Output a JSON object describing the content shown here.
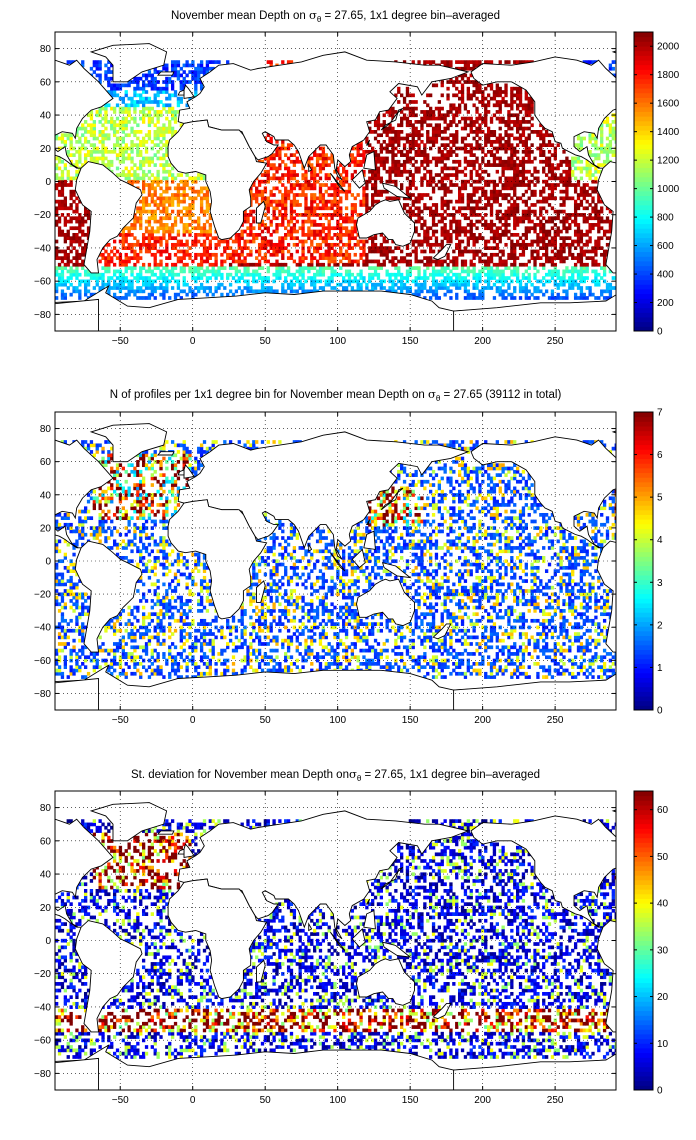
{
  "chart_data": [
    {
      "type": "heatmap",
      "title": {
        "before": "November mean Depth on ",
        "sym": "σ",
        "sub": "θ",
        "after": " = 27.65, 1x1 degree bin–averaged"
      },
      "xlim": [
        -95,
        292
      ],
      "ylim": [
        -90,
        90
      ],
      "xticks": [
        -50,
        0,
        50,
        100,
        150,
        200,
        250
      ],
      "yticks": [
        -80,
        -60,
        -40,
        -20,
        0,
        20,
        40,
        60,
        80
      ],
      "grid": true,
      "colorbar": {
        "min": 0,
        "max": 2100,
        "ticks": [
          0,
          200,
          400,
          600,
          800,
          1000,
          1200,
          1400,
          1600,
          1800,
          2000
        ]
      },
      "colormap": "jet",
      "field": "depth"
    },
    {
      "type": "heatmap",
      "title": {
        "before": "N of profiles per 1x1 degree bin for November mean Depth on ",
        "sym": "σ",
        "sub": "θ",
        "after": " = 27.65 (39112 in total)"
      },
      "xlim": [
        -95,
        292
      ],
      "ylim": [
        -90,
        90
      ],
      "xticks": [
        -50,
        0,
        50,
        100,
        150,
        200,
        250
      ],
      "yticks": [
        -80,
        -60,
        -40,
        -20,
        0,
        20,
        40,
        60,
        80
      ],
      "grid": true,
      "colorbar": {
        "min": 0,
        "max": 7,
        "ticks": [
          0,
          1,
          2,
          3,
          4,
          5,
          6,
          7
        ]
      },
      "colormap": "jet",
      "field": "count"
    },
    {
      "type": "heatmap",
      "title": {
        "before": "St. deviation for November mean Depth on",
        "sym": "σ",
        "sub": "θ",
        "after": " = 27.65, 1x1 degree bin–averaged"
      },
      "xlim": [
        -95,
        292
      ],
      "ylim": [
        -90,
        90
      ],
      "xticks": [
        -50,
        0,
        50,
        100,
        150,
        200,
        250
      ],
      "yticks": [
        -80,
        -60,
        -40,
        -20,
        0,
        20,
        40,
        60,
        80
      ],
      "grid": true,
      "colorbar": {
        "min": 0,
        "max": 64,
        "ticks": [
          0,
          10,
          20,
          30,
          40,
          50,
          60
        ]
      },
      "colormap": "jet",
      "field": "std"
    }
  ]
}
